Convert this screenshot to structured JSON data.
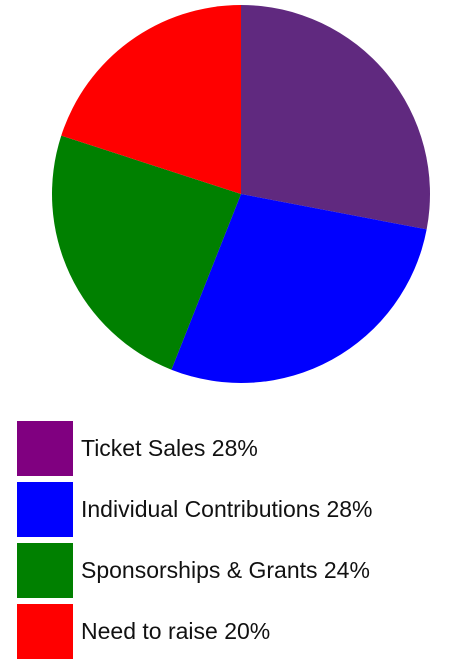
{
  "chart_data": {
    "type": "pie",
    "title": "",
    "categories": [
      "Ticket Sales",
      "Individual Contributions",
      "Sponsorships & Grants",
      "Need to raise"
    ],
    "values": [
      28,
      28,
      24,
      20
    ],
    "unit": "%",
    "slice_colors": [
      "#60297f",
      "#0000ff",
      "#008000",
      "#ff0000"
    ],
    "start_position": "top, clockwise",
    "legend_placement": "below",
    "legend": [
      {
        "label": "Ticket Sales 28%",
        "swatch_color": "#800080"
      },
      {
        "label": "Individual Contributions 28%",
        "swatch_color": "#0000ff"
      },
      {
        "label": "Sponsorships & Grants 24%",
        "swatch_color": "#008000"
      },
      {
        "label": "Need to raise 20%",
        "swatch_color": "#ff0000"
      }
    ]
  }
}
